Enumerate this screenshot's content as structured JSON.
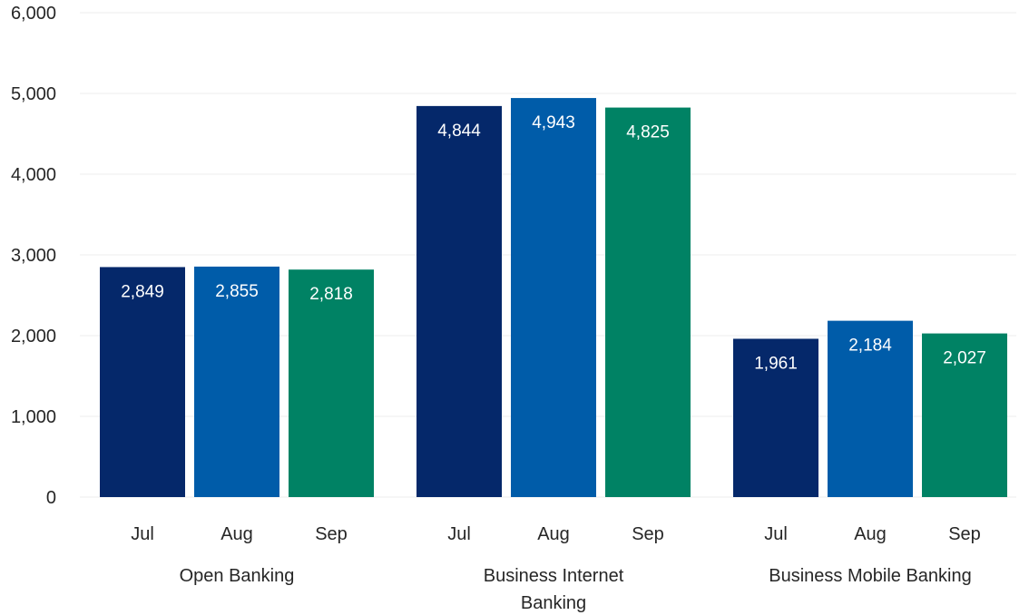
{
  "chart_data": {
    "type": "bar",
    "groups": [
      {
        "label": [
          "Open Banking"
        ],
        "categories": [
          "Jul",
          "Aug",
          "Sep"
        ],
        "values": [
          2849,
          2855,
          2818
        ],
        "value_labels": [
          "2,849",
          "2,855",
          "2,818"
        ]
      },
      {
        "label": [
          "Business Internet",
          "Banking"
        ],
        "categories": [
          "Jul",
          "Aug",
          "Sep"
        ],
        "values": [
          4844,
          4943,
          4825
        ],
        "value_labels": [
          "4,844",
          "4,943",
          "4,825"
        ]
      },
      {
        "label": [
          "Business Mobile Banking"
        ],
        "categories": [
          "Jul",
          "Aug",
          "Sep"
        ],
        "values": [
          1961,
          2184,
          2027
        ],
        "value_labels": [
          "1,961",
          "2,184",
          "2,027"
        ]
      }
    ],
    "category_colors": [
      "#05286a",
      "#005ca9",
      "#008264"
    ],
    "ylim": [
      0,
      6000
    ],
    "yticks": [
      0,
      1000,
      2000,
      3000,
      4000,
      5000,
      6000
    ],
    "ytick_labels": [
      "0",
      "1,000",
      "2,000",
      "3,000",
      "4,000",
      "5,000",
      "6,000"
    ],
    "grid": true,
    "legend": "none"
  }
}
